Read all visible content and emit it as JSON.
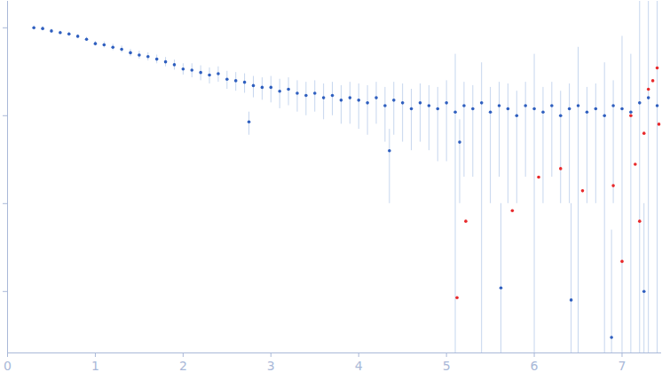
{
  "chart_data": {
    "type": "scatter",
    "log": "y",
    "grid": false,
    "tick_labels": "x",
    "xlim": [
      0,
      7.45
    ],
    "xticks": [
      0,
      1,
      2,
      3,
      4,
      5,
      6,
      7
    ],
    "ylim": [
      0.0002,
      2
    ],
    "yticks": [
      0.001,
      0.01,
      0.1,
      1
    ],
    "series": [
      {
        "color": "#2f5fbf",
        "marker": "circle",
        "x": [
          0.3,
          0.4,
          0.5,
          0.6,
          0.7,
          0.8,
          0.9,
          1.0,
          1.1,
          1.2,
          1.3,
          1.4,
          1.5,
          1.6,
          1.7,
          1.8,
          1.9,
          2.0,
          2.1,
          2.2,
          2.3,
          2.4,
          2.5,
          2.6,
          2.7,
          2.75,
          2.8,
          2.9,
          3.0,
          3.1,
          3.2,
          3.3,
          3.4,
          3.5,
          3.6,
          3.7,
          3.8,
          3.9,
          4.0,
          4.1,
          4.2,
          4.3,
          4.35,
          4.4,
          4.5,
          4.6,
          4.7,
          4.8,
          4.9,
          5.0,
          5.1,
          5.15,
          5.2,
          5.3,
          5.4,
          5.5,
          5.6,
          5.62,
          5.7,
          5.8,
          5.9,
          6.0,
          6.1,
          6.2,
          6.3,
          6.4,
          6.42,
          6.5,
          6.6,
          6.7,
          6.8,
          6.88,
          6.9,
          7.0,
          7.1,
          7.2,
          7.25,
          7.3,
          7.4
        ],
        "values": [
          1.0,
          0.98,
          0.92,
          0.88,
          0.85,
          0.8,
          0.74,
          0.66,
          0.64,
          0.6,
          0.57,
          0.52,
          0.49,
          0.47,
          0.44,
          0.41,
          0.38,
          0.34,
          0.33,
          0.31,
          0.29,
          0.3,
          0.26,
          0.25,
          0.24,
          0.085,
          0.22,
          0.21,
          0.21,
          0.19,
          0.2,
          0.18,
          0.17,
          0.18,
          0.16,
          0.17,
          0.15,
          0.16,
          0.15,
          0.14,
          0.16,
          0.13,
          0.04,
          0.15,
          0.14,
          0.12,
          0.14,
          0.13,
          0.12,
          0.14,
          0.11,
          0.05,
          0.13,
          0.12,
          0.14,
          0.11,
          0.13,
          0.0011,
          0.12,
          0.1,
          0.13,
          0.12,
          0.11,
          0.13,
          0.1,
          0.12,
          0.0008,
          0.13,
          0.11,
          0.12,
          0.1,
          0.0003,
          0.13,
          0.12,
          0.11,
          0.14,
          0.001,
          0.16,
          0.13
        ],
        "error_low": [
          0.95,
          0.93,
          0.87,
          0.84,
          0.81,
          0.76,
          0.7,
          0.62,
          0.59,
          0.55,
          0.52,
          0.47,
          0.44,
          0.42,
          0.39,
          0.36,
          0.33,
          0.29,
          0.27,
          0.25,
          0.23,
          0.24,
          0.2,
          0.19,
          0.18,
          0.06,
          0.16,
          0.15,
          0.14,
          0.12,
          0.13,
          0.11,
          0.1,
          0.11,
          0.09,
          0.1,
          0.08,
          0.08,
          0.07,
          0.06,
          0.08,
          0.05,
          0.01,
          0.06,
          0.05,
          0.04,
          0.05,
          0.04,
          0.03,
          0.03,
          0.0001,
          0.01,
          0.02,
          0.02,
          0.0001,
          0.01,
          0.02,
          0.0001,
          0.01,
          0.01,
          0.02,
          0.0001,
          0.01,
          0.02,
          0.01,
          0.01,
          0.0001,
          0.0001,
          0.01,
          0.01,
          0.0001,
          0.0001,
          0.01,
          0.0001,
          0.0001,
          0.0001,
          0.0001,
          0.0001,
          0.0001
        ],
        "error_high": [
          1.05,
          1.03,
          0.97,
          0.92,
          0.89,
          0.84,
          0.78,
          0.7,
          0.69,
          0.65,
          0.62,
          0.57,
          0.54,
          0.52,
          0.49,
          0.46,
          0.43,
          0.39,
          0.39,
          0.37,
          0.35,
          0.36,
          0.32,
          0.31,
          0.3,
          0.11,
          0.28,
          0.27,
          0.28,
          0.26,
          0.27,
          0.25,
          0.24,
          0.25,
          0.23,
          0.24,
          0.22,
          0.24,
          0.23,
          0.22,
          0.24,
          0.21,
          0.07,
          0.24,
          0.23,
          0.2,
          0.23,
          0.22,
          0.21,
          0.25,
          0.5,
          0.09,
          0.24,
          0.22,
          0.4,
          0.21,
          0.24,
          0.01,
          0.23,
          0.19,
          0.24,
          0.5,
          0.21,
          0.24,
          0.19,
          0.23,
          0.01,
          0.6,
          0.21,
          0.23,
          0.4,
          0.005,
          0.25,
          0.8,
          0.5,
          2.5,
          0.01,
          2.5,
          2.5
        ]
      },
      {
        "color": "#e8292b",
        "marker": "circle",
        "x": [
          5.12,
          5.22,
          5.75,
          6.05,
          6.3,
          6.55,
          6.9,
          7.0,
          7.1,
          7.15,
          7.2,
          7.25,
          7.3,
          7.35,
          7.4,
          7.42
        ],
        "values": [
          0.00085,
          0.0063,
          0.0083,
          0.02,
          0.025,
          0.014,
          0.016,
          0.0022,
          0.1,
          0.028,
          0.0063,
          0.063,
          0.2,
          0.25,
          0.35,
          0.08
        ]
      }
    ]
  }
}
